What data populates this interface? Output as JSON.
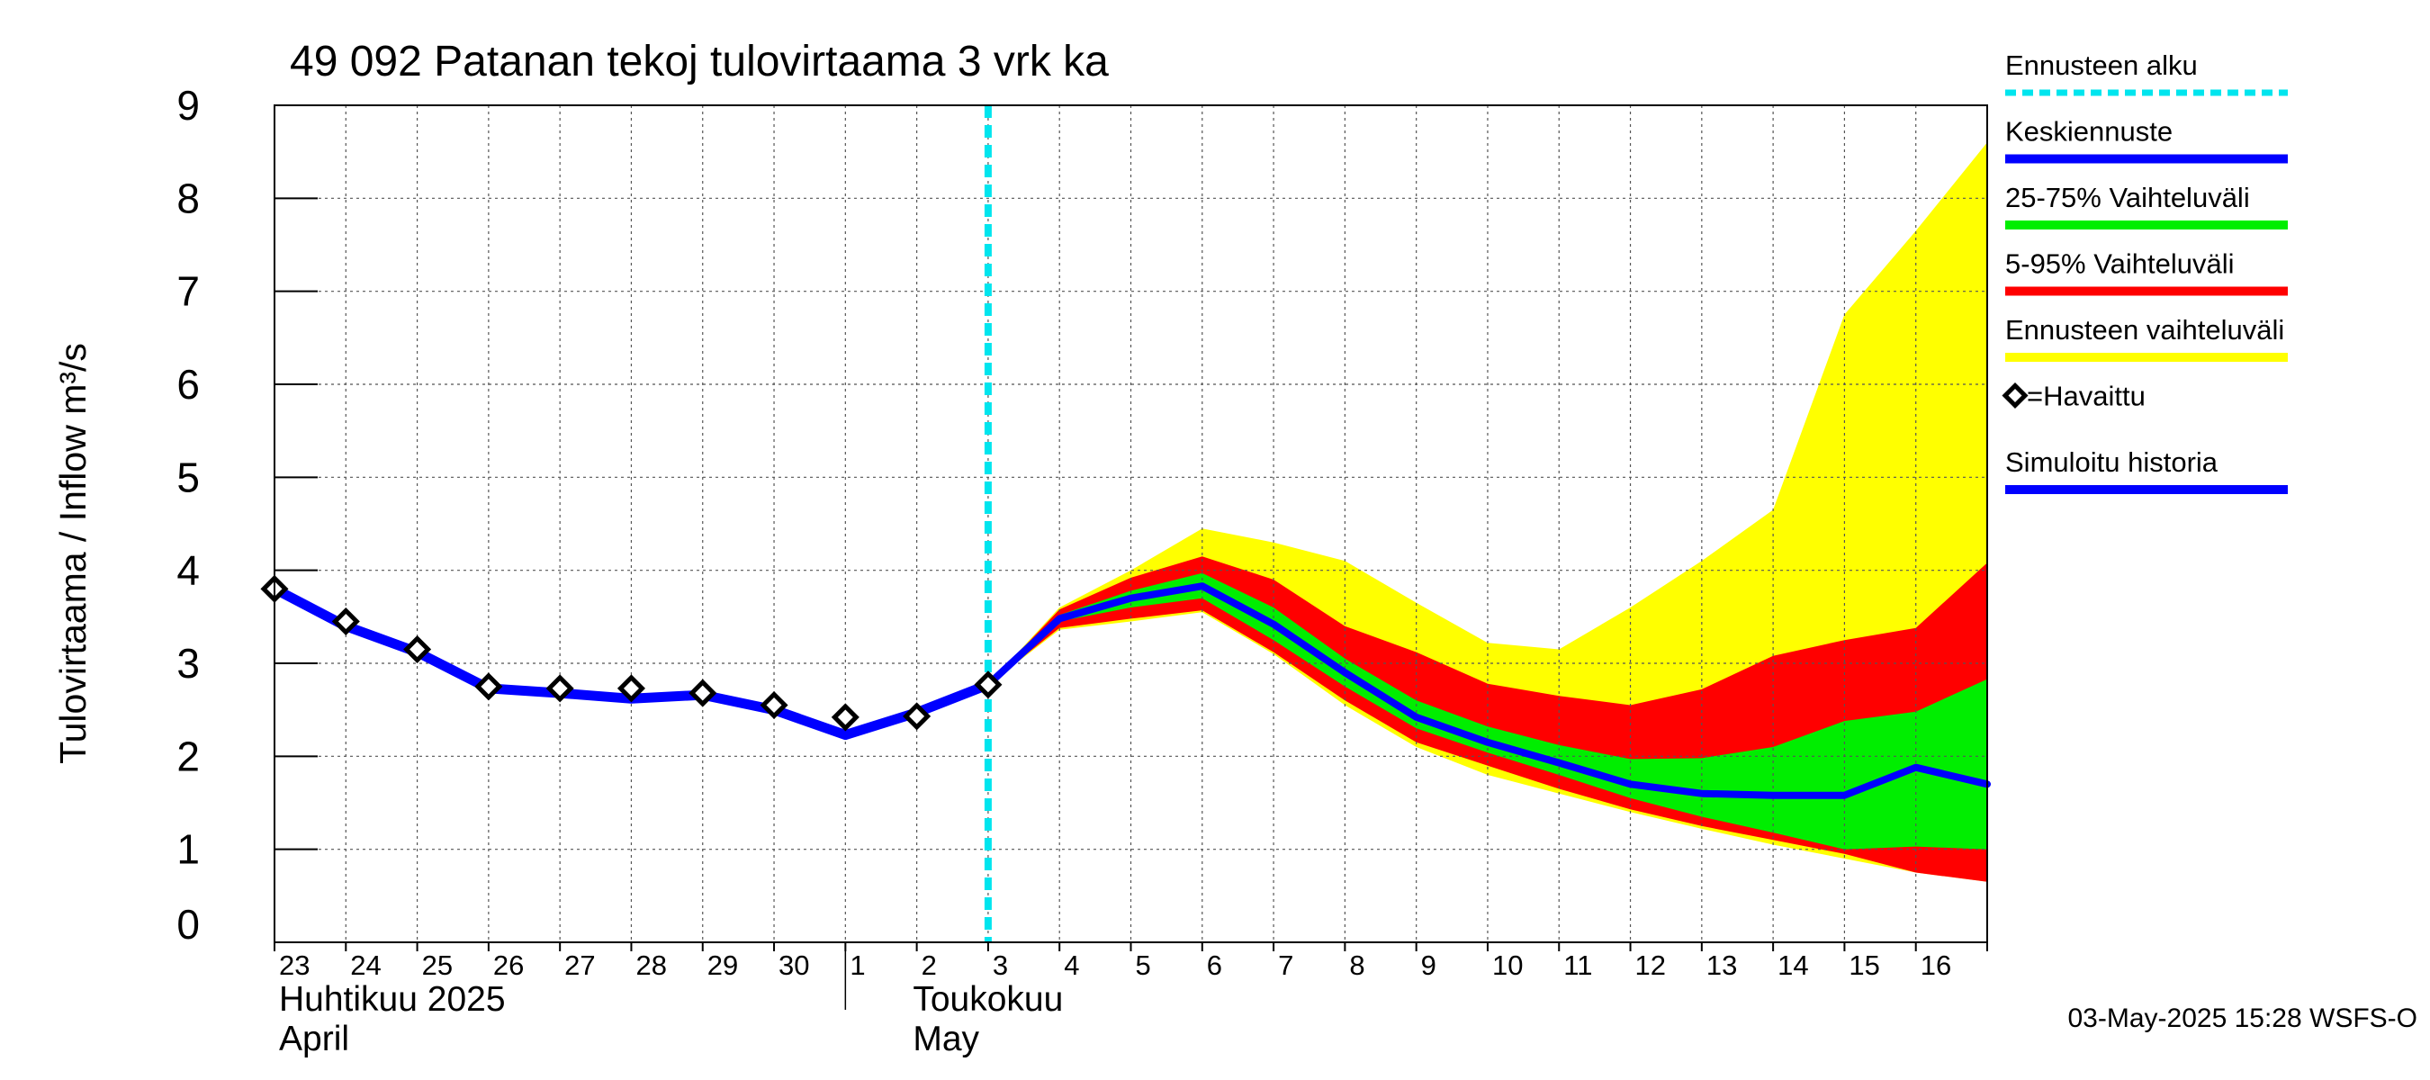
{
  "chart_data": {
    "type": "area",
    "title": "49 092 Patanan tekoj tulovirtaama 3 vrk ka",
    "ylabel": "Tulovirtaama / Inflow    m³/s",
    "ylim": [
      0,
      9
    ],
    "yticks": [
      "0",
      "1",
      "2",
      "3",
      "4",
      "5",
      "6",
      "7",
      "8",
      "9"
    ],
    "grid": true,
    "x_dates": [
      "2025-04-23",
      "2025-04-24",
      "2025-04-25",
      "2025-04-26",
      "2025-04-27",
      "2025-04-28",
      "2025-04-29",
      "2025-04-30",
      "2025-05-01",
      "2025-05-02",
      "2025-05-03",
      "2025-05-04",
      "2025-05-05",
      "2025-05-06",
      "2025-05-07",
      "2025-05-08",
      "2025-05-09",
      "2025-05-10",
      "2025-05-11",
      "2025-05-12",
      "2025-05-13",
      "2025-05-14",
      "2025-05-15",
      "2025-05-16",
      "2025-05-17"
    ],
    "xtick_labels": [
      "23",
      "24",
      "25",
      "26",
      "27",
      "28",
      "29",
      "30",
      "1",
      "2",
      "3",
      "4",
      "5",
      "6",
      "7",
      "8",
      "9",
      "10",
      "11",
      "12",
      "13",
      "14",
      "15",
      "16"
    ],
    "month_labels": [
      {
        "line1": "Huhtikuu  2025",
        "line2": "April"
      },
      {
        "line1": "Toukokuu",
        "line2": "May"
      }
    ],
    "forecast_start": "2025-05-03",
    "observed": {
      "name": "=Havaittu",
      "x": [
        "2025-04-23",
        "2025-04-24",
        "2025-04-25",
        "2025-04-26",
        "2025-04-27",
        "2025-04-28",
        "2025-04-29",
        "2025-04-30",
        "2025-05-01",
        "2025-05-02",
        "2025-05-03"
      ],
      "y": [
        3.8,
        3.45,
        3.15,
        2.75,
        2.73,
        2.73,
        2.68,
        2.55,
        2.42,
        2.43,
        2.77
      ]
    },
    "simulated_history": {
      "name": "Simuloitu historia",
      "x": [
        "2025-04-23",
        "2025-04-24",
        "2025-04-25",
        "2025-04-26",
        "2025-04-27",
        "2025-04-28",
        "2025-04-29",
        "2025-04-30",
        "2025-05-01",
        "2025-05-02",
        "2025-05-03"
      ],
      "y": [
        3.8,
        3.4,
        3.12,
        2.73,
        2.68,
        2.62,
        2.66,
        2.5,
        2.23,
        2.47,
        2.77
      ]
    },
    "forecast_x": [
      "2025-05-03",
      "2025-05-04",
      "2025-05-05",
      "2025-05-06",
      "2025-05-07",
      "2025-05-08",
      "2025-05-09",
      "2025-05-10",
      "2025-05-11",
      "2025-05-12",
      "2025-05-13",
      "2025-05-14",
      "2025-05-15",
      "2025-05-16",
      "2025-05-17"
    ],
    "median": {
      "name": "Keskiennuste",
      "y": [
        2.77,
        3.48,
        3.7,
        3.83,
        3.42,
        2.9,
        2.42,
        2.15,
        1.93,
        1.7,
        1.6,
        1.58,
        1.58,
        1.88,
        1.7
      ]
    },
    "band_25_75": {
      "name": "25-75% Vaihteluväli",
      "low": [
        2.77,
        3.45,
        3.6,
        3.7,
        3.25,
        2.75,
        2.3,
        2.04,
        1.8,
        1.55,
        1.35,
        1.18,
        1.0,
        1.03,
        1.0
      ],
      "high": [
        2.77,
        3.52,
        3.78,
        3.97,
        3.6,
        3.05,
        2.6,
        2.32,
        2.12,
        1.97,
        1.98,
        2.1,
        2.38,
        2.48,
        2.83
      ]
    },
    "band_5_95": {
      "name": "5-95% Vaihteluväli",
      "low": [
        2.77,
        3.38,
        3.48,
        3.57,
        3.12,
        2.6,
        2.15,
        1.9,
        1.65,
        1.43,
        1.25,
        1.1,
        0.95,
        0.75,
        0.65
      ],
      "high": [
        2.77,
        3.58,
        3.92,
        4.15,
        3.9,
        3.4,
        3.12,
        2.78,
        2.65,
        2.55,
        2.72,
        3.08,
        3.25,
        3.38,
        4.08
      ]
    },
    "band_full": {
      "name": "Ennusteen vaihteluväli",
      "low": [
        2.77,
        3.36,
        3.45,
        3.55,
        3.1,
        2.55,
        2.1,
        1.8,
        1.6,
        1.4,
        1.22,
        1.05,
        0.9,
        0.75,
        0.65
      ],
      "high": [
        2.77,
        3.6,
        4.0,
        4.45,
        4.3,
        4.1,
        3.65,
        3.22,
        3.15,
        3.6,
        4.1,
        4.65,
        6.75,
        7.65,
        8.6
      ]
    },
    "legend": {
      "placement": "right",
      "items": [
        {
          "label": "Ennusteen alku",
          "color": "#00e5ee",
          "style": "dashed"
        },
        {
          "label": "Keskiennuste",
          "color": "#0000ff",
          "style": "line"
        },
        {
          "label": "25-75% Vaihteluväli",
          "color": "#00ee00",
          "style": "line"
        },
        {
          "label": "5-95% Vaihteluväli",
          "color": "#ff0000",
          "style": "line"
        },
        {
          "label": "Ennusteen vaihteluväli",
          "color": "#ffff00",
          "style": "line"
        },
        {
          "label": "=Havaittu",
          "color": "#000000",
          "style": "diamond"
        },
        {
          "label": "Simuloitu historia",
          "color": "#0000ff",
          "style": "line"
        }
      ]
    },
    "footer": "03-May-2025 15:28 WSFS-O",
    "colors": {
      "history": "#0000ff",
      "median": "#0000ff",
      "band_25_75": "#00ee00",
      "band_5_95": "#ff0000",
      "band_full": "#ffff00",
      "forecast_start": "#00e5ee",
      "observed": "#000000",
      "grid": "#555555"
    }
  }
}
